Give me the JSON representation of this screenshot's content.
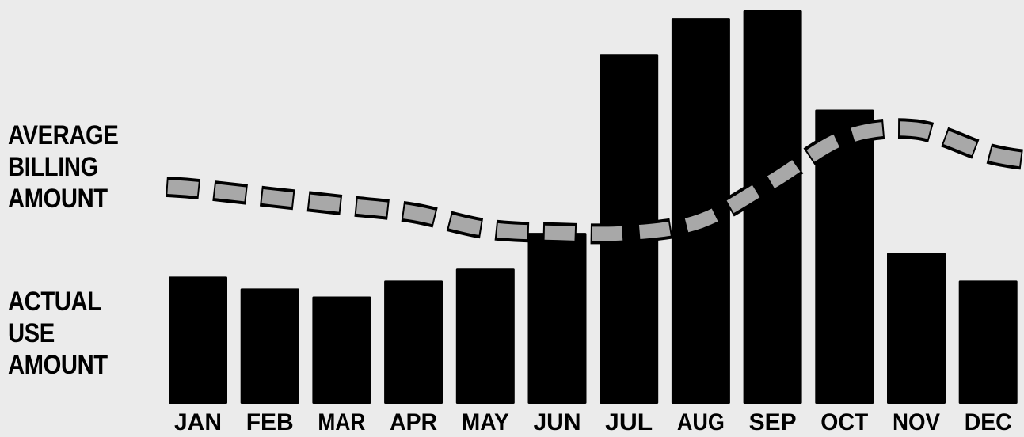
{
  "chart_data": {
    "type": "bar",
    "categories": [
      "JAN",
      "FEB",
      "MAR",
      "APR",
      "MAY",
      "JUN",
      "JUL",
      "AUG",
      "SEP",
      "OCT",
      "NOV",
      "DEC"
    ],
    "series": [
      {
        "type": "bar",
        "values": [
          32,
          29,
          27,
          31,
          34,
          43,
          88,
          97,
          99,
          74,
          38,
          31
        ]
      },
      {
        "type": "line",
        "style": "dashed",
        "values": [
          54,
          52,
          50,
          48,
          44,
          43,
          43,
          46,
          56,
          67,
          69,
          63
        ]
      }
    ],
    "annotations": {
      "average_billing_amount": [
        "AVERAGE",
        "BILLING",
        "AMOUNT"
      ],
      "actual_use_amount": [
        "ACTUAL",
        "USE",
        "AMOUNT"
      ]
    },
    "ylim": [
      0,
      100
    ],
    "grid": false,
    "axis_visible": false,
    "colors": {
      "bar": "#000000",
      "line_fill": "#a8a8a8",
      "line_outline": "#000000",
      "background": "#ebebeb"
    }
  }
}
